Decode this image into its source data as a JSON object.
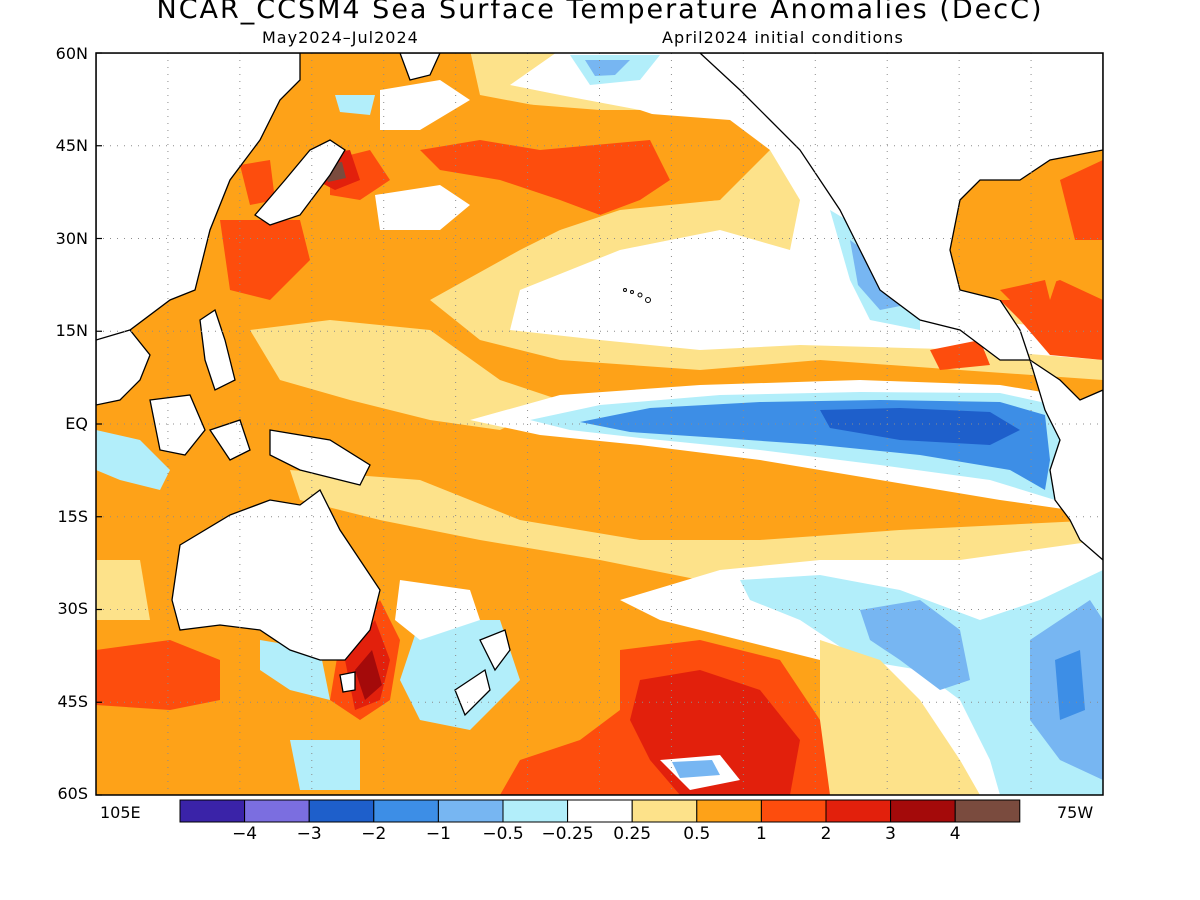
{
  "title": "NCAR_CCSM4 Sea Surface Temperature Anomalies (DecC)",
  "subtitle_left": "May2024–Jul2024",
  "subtitle_right": "April2024 initial conditions",
  "lat_labels": [
    "60N",
    "45N",
    "30N",
    "15N",
    "EQ",
    "15S",
    "30S",
    "45S",
    "60S"
  ],
  "lon_left": "105E",
  "lon_right": "75W",
  "colors": {
    "lt_m4": "#3a23a8",
    "m4_m3": "#7b6ee0",
    "m3_m2": "#1e5fcb",
    "m2_m1": "#3d8ee6",
    "m1_m05": "#77b6f2",
    "m05_m025": "#b2eefa",
    "neutral": "#ffffff",
    "p025_p05": "#fde28a",
    "p05_p1": "#fea218",
    "p1_p2": "#fd4d0d",
    "p2_p3": "#e2200c",
    "p3_p4": "#a40a0a",
    "gt_p4": "#7a4b3e",
    "land": "#ffffff"
  },
  "colorbar": {
    "colors": [
      "#3a23a8",
      "#7b6ee0",
      "#1e5fcb",
      "#3d8ee6",
      "#77b6f2",
      "#b2eefa",
      "#ffffff",
      "#fde28a",
      "#fea218",
      "#fd4d0d",
      "#e2200c",
      "#a40a0a",
      "#7a4b3e"
    ],
    "labels": [
      "−4",
      "−3",
      "−2",
      "−1",
      "−0.5",
      "−0.25",
      "0.25",
      "0.5",
      "1",
      "2",
      "3",
      "4"
    ]
  }
}
